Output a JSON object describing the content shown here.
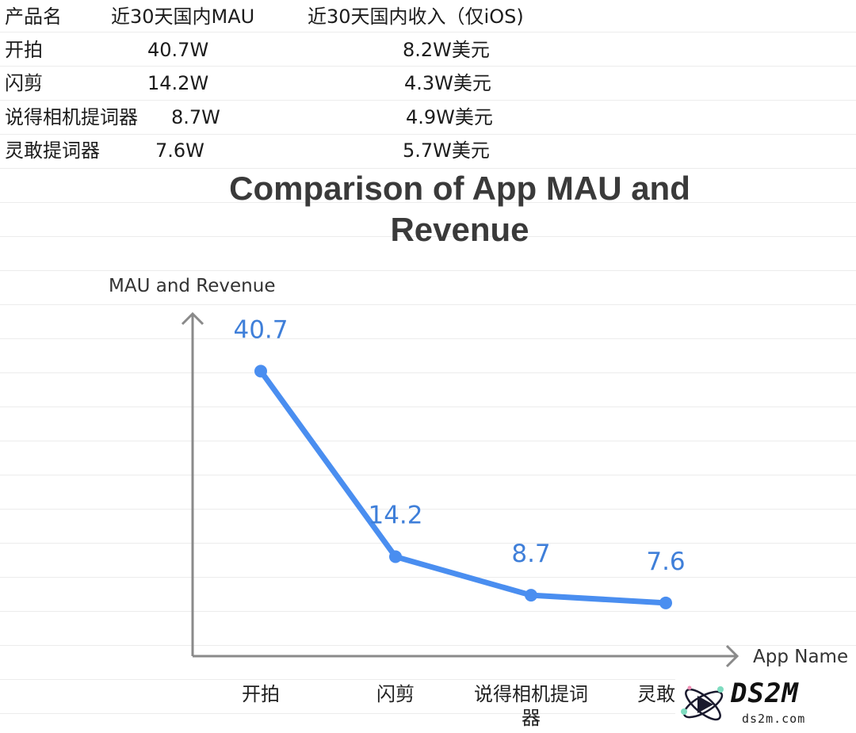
{
  "table": {
    "headers": [
      "产品名",
      "近30天国内MAU",
      "近30天国内收入（仅iOS)"
    ],
    "rows": [
      [
        "开拍",
        "40.7W",
        "8.2W美元"
      ],
      [
        "闪剪",
        "14.2W",
        "4.3W美元"
      ],
      [
        "说得相机提词器",
        "8.7W",
        "4.9W美元"
      ],
      [
        "灵敢提词器",
        "7.6W",
        "5.7W美元"
      ]
    ]
  },
  "chart_data": {
    "type": "line",
    "title": "Comparison of App MAU and Revenue",
    "title_lines": [
      "Comparison of App MAU and",
      "Revenue"
    ],
    "xlabel": "App Name",
    "ylabel": "MAU and Revenue",
    "categories": [
      "开拍",
      "闪剪",
      "说得相机提词器",
      "灵敢提词器"
    ],
    "category_label_lines": [
      [
        "开拍"
      ],
      [
        "闪剪"
      ],
      [
        "说得相机提词",
        "器"
      ],
      [
        "灵敢提"
      ]
    ],
    "values": [
      40.7,
      14.2,
      8.7,
      7.6
    ],
    "data_labels": [
      "40.7",
      "14.2",
      "8.7",
      "7.6"
    ],
    "ylim": [
      0,
      55
    ],
    "grid": false,
    "line_color": "#4a8ef0",
    "label_color": "#3f7fd9",
    "axis_color": "#8a8a8a"
  },
  "watermark": {
    "text": "DS2M",
    "subtext": "ds2m.com",
    "icon": "atom-logo-icon"
  }
}
